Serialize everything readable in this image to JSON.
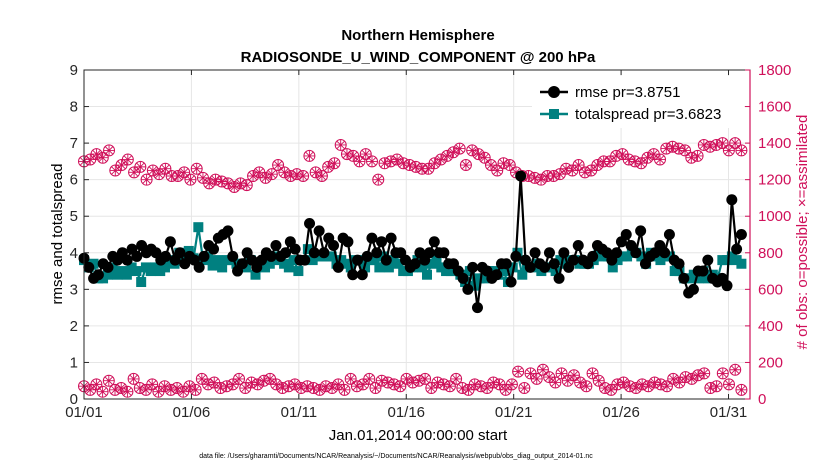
{
  "chart_data": {
    "type": "line",
    "title": "Northern Hemisphere",
    "subtitle": "RADIOSONDE_U_WIND_COMPONENT @ 200 hPa",
    "xlabel": "Jan.01,2014 00:00:00 start",
    "ylabel": "rmse and totalspread",
    "y2label": "# of obs: o=possible; ×=assimilated",
    "footnote": "data file: /Users/gharamti/Documents/NCAR/Reanalysis/~/Documents/NCAR/Reanalysis/webpub/obs_diag_output_2014-01.nc",
    "xlim": [
      0,
      31
    ],
    "ylim": [
      0,
      9
    ],
    "y2lim": [
      0,
      1800
    ],
    "xticks": [
      0,
      5,
      10,
      15,
      20,
      25,
      30
    ],
    "xtick_labels": [
      "01/01",
      "01/06",
      "01/11",
      "01/16",
      "01/21",
      "01/26",
      "01/31"
    ],
    "yticks": [
      0,
      1,
      2,
      3,
      4,
      5,
      6,
      7,
      8,
      9
    ],
    "ytick_labels": [
      "0",
      "1",
      "2",
      "3",
      "4",
      "5",
      "6",
      "7",
      "8",
      "9"
    ],
    "y2ticks": [
      0,
      200,
      400,
      600,
      800,
      1000,
      1200,
      1400,
      1600,
      1800
    ],
    "y2tick_labels": [
      "0",
      "200",
      "400",
      "600",
      "800",
      "1000",
      "1200",
      "1400",
      "1600",
      "1800"
    ],
    "grid": true,
    "legend_position": "top-right",
    "colors": {
      "rmse": "#000000",
      "spread": "#008080",
      "obs": "#d0105a",
      "axis_left": "#333333",
      "axis_right": "#d0105a",
      "grid": "#e6e6e6"
    },
    "series": [
      {
        "name": "rmse pr=3.8751",
        "axis": "left",
        "values": [
          3.85,
          3.6,
          3.3,
          3.4,
          3.7,
          3.6,
          3.9,
          3.8,
          4.0,
          3.8,
          4.1,
          3.9,
          4.2,
          4.0,
          4.1,
          4.0,
          3.8,
          3.9,
          4.3,
          3.8,
          4.0,
          3.7,
          3.9,
          3.8,
          3.6,
          3.9,
          4.2,
          4.1,
          4.4,
          4.5,
          4.6,
          3.9,
          3.5,
          3.7,
          4.0,
          3.8,
          3.6,
          3.8,
          4.0,
          3.9,
          4.2,
          3.9,
          4.0,
          4.3,
          4.1,
          3.8,
          3.8,
          4.8,
          4.0,
          4.6,
          4.0,
          4.4,
          4.2,
          3.6,
          4.4,
          4.3,
          3.4,
          3.8,
          3.4,
          3.9,
          4.4,
          4.0,
          4.3,
          3.8,
          4.4,
          4.0,
          4.0,
          3.8,
          3.6,
          3.7,
          4.0,
          3.8,
          4.0,
          4.3,
          4.0,
          4.0,
          3.7,
          3.7,
          3.5,
          3.3,
          3.0,
          3.6,
          2.5,
          3.6,
          3.5,
          3.3,
          3.4,
          3.7,
          3.7,
          3.2,
          3.9,
          6.1,
          3.8,
          3.6,
          4.0,
          3.7,
          3.6,
          4.0,
          3.7,
          3.3,
          4.0,
          3.6,
          3.8,
          4.2,
          3.8,
          3.7,
          3.9,
          4.2,
          4.1,
          4.0,
          3.8,
          4.0,
          4.3,
          4.5,
          4.2,
          4.0,
          4.6,
          3.7,
          3.9,
          4.0,
          4.2,
          4.0,
          4.5,
          3.8,
          3.7,
          3.3,
          2.9,
          3.0,
          3.5,
          3.5,
          3.8,
          3.3,
          3.2,
          3.3,
          3.1,
          5.45,
          4.1,
          4.5
        ]
      },
      {
        "name": "totalspread pr=3.6823",
        "axis": "left",
        "values": [
          3.8,
          3.6,
          3.7,
          3.3,
          3.3,
          3.4,
          3.6,
          3.4,
          3.5,
          3.4,
          3.6,
          3.5,
          3.2,
          3.6,
          3.5,
          3.6,
          3.5,
          3.6,
          3.8,
          3.7,
          4.0,
          3.8,
          4.05,
          3.85,
          4.7,
          3.8,
          3.9,
          3.65,
          3.8,
          3.6,
          3.8,
          3.8,
          3.7,
          3.7,
          3.6,
          3.8,
          3.4,
          3.7,
          3.6,
          3.7,
          3.8,
          3.9,
          3.7,
          3.6,
          3.8,
          3.5,
          3.8,
          4.1,
          3.8,
          3.9,
          3.9,
          3.9,
          3.9,
          3.7,
          3.8,
          3.7,
          3.6,
          3.8,
          3.8,
          3.6,
          3.8,
          3.8,
          3.6,
          3.9,
          3.6,
          3.8,
          3.7,
          3.5,
          3.5,
          3.6,
          3.8,
          3.6,
          3.4,
          3.7,
          3.8,
          3.6,
          3.5,
          3.5,
          3.5,
          3.4,
          3.2,
          3.5,
          3.1,
          3.3,
          3.3,
          3.5,
          3.5,
          3.4,
          3.5,
          3.2,
          3.6,
          4.0,
          3.4,
          3.6,
          3.6,
          3.7,
          3.5,
          3.6,
          3.6,
          3.5,
          3.8,
          3.7,
          3.8,
          3.8,
          3.7,
          3.7,
          3.7,
          3.8,
          4.0,
          3.9,
          3.9,
          3.6,
          3.8,
          3.9,
          3.9,
          4.0,
          4.0,
          3.9,
          3.7,
          4.0,
          3.9,
          3.8,
          3.9,
          3.9,
          3.5,
          3.5,
          3.3,
          3.3,
          3.4,
          3.3,
          3.5,
          3.3,
          3.4,
          3.3,
          3.8,
          3.8,
          3.9,
          3.8,
          3.7
        ]
      },
      {
        "name": "obs possible",
        "axis": "right",
        "values": [
          1300,
          1310,
          1340,
          1320,
          1360,
          1250,
          1280,
          1310,
          1240,
          1270,
          1200,
          1250,
          1230,
          1260,
          1220,
          1220,
          1240,
          1200,
          1260,
          1210,
          1180,
          1200,
          1190,
          1180,
          1160,
          1180,
          1170,
          1220,
          1240,
          1210,
          1230,
          1280,
          1240,
          1220,
          1230,
          1220,
          1330,
          1240,
          1220,
          1270,
          1290,
          1390,
          1340,
          1330,
          1300,
          1340,
          1300,
          1200,
          1290,
          1300,
          1310,
          1290,
          1280,
          1270,
          1260,
          1260,
          1290,
          1310,
          1330,
          1350,
          1370,
          1280,
          1360,
          1340,
          1320,
          1280,
          1250,
          1290,
          1280,
          1240,
          1220,
          1220,
          1210,
          1200,
          1220,
          1220,
          1230,
          1260,
          1250,
          1280,
          1240,
          1250,
          1280,
          1300,
          1300,
          1330,
          1340,
          1310,
          1300,
          1290,
          1320,
          1340,
          1310,
          1370,
          1380,
          1370,
          1360,
          1320,
          1330,
          1390,
          1380,
          1390,
          1400,
          1360,
          1400,
          1360
        ]
      },
      {
        "name": "obs assimilated",
        "axis": "right",
        "values": [
          70,
          50,
          80,
          40,
          100,
          50,
          60,
          40,
          110,
          60,
          50,
          80,
          40,
          70,
          50,
          60,
          40,
          70,
          50,
          110,
          80,
          90,
          60,
          70,
          80,
          110,
          60,
          90,
          80,
          100,
          110,
          80,
          60,
          70,
          80,
          60,
          70,
          60,
          50,
          70,
          60,
          80,
          50,
          110,
          70,
          80,
          110,
          60,
          100,
          90,
          80,
          70,
          110,
          90,
          100,
          110,
          60,
          90,
          80,
          70,
          110,
          60,
          50,
          80,
          70,
          60,
          90,
          80,
          50,
          80,
          150,
          60,
          140,
          110,
          160,
          120,
          90,
          140,
          100,
          130,
          90,
          70,
          140,
          100,
          60,
          50,
          80,
          90,
          70,
          60,
          80,
          70,
          90,
          80,
          70,
          110,
          90,
          120,
          110,
          130,
          140,
          60,
          70,
          140,
          80,
          160,
          50
        ]
      }
    ]
  }
}
